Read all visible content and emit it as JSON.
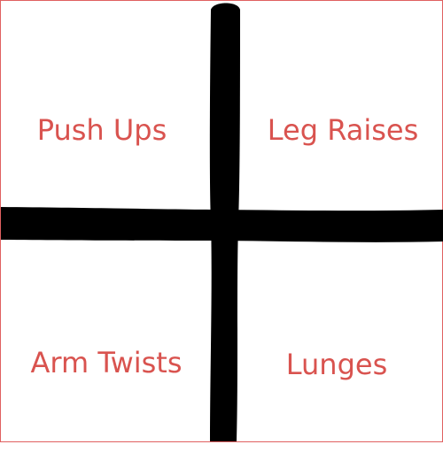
{
  "accent_color": "#d9534f",
  "line_color": "#000000",
  "cells": [
    {
      "label": "Push Ups"
    },
    {
      "label": "Leg Raises"
    },
    {
      "label": "Arm Twists"
    },
    {
      "label": "Lunges"
    }
  ]
}
